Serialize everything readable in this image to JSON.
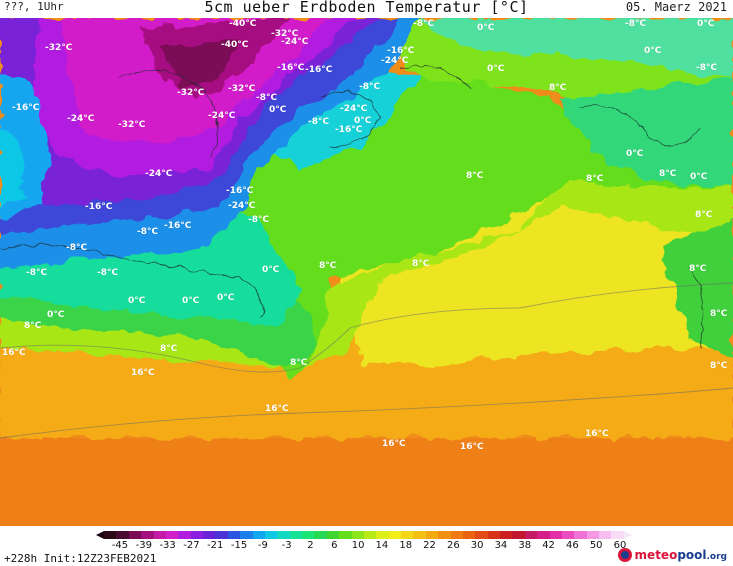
{
  "header": {
    "left": "???, 1Uhr",
    "title": "5cm ueber Erdboden Temperatur [°C]",
    "right": "05. Maerz 2021"
  },
  "map": {
    "labels": [
      "-40°C",
      "-40°C",
      "-32°C",
      "-24°C",
      "-8°C",
      "-32°C",
      "-16°C",
      "-24°C",
      "-16°C",
      "-16°C",
      "-8°C",
      "-24°C",
      "-16°C",
      "-32°C",
      "-32°C",
      "-8°C",
      "-24°C",
      "0°C",
      "0°C",
      "-8°C",
      "-24°C",
      "-32°C",
      "-16°C",
      "-16°C",
      "-24°C",
      "-8°C",
      "-24°C",
      "-16°C",
      "-8°C",
      "-16°C",
      "-8°C",
      "-8°C",
      "-8°C",
      "0°C",
      "0°C",
      "0°C",
      "0°C",
      "8°C",
      "8°C",
      "8°C",
      "8°C",
      "8°C",
      "8°C",
      "8°C",
      "8°C",
      "16°C",
      "16°C",
      "16°C",
      "16°C",
      "16°C",
      "16°C",
      "-8°C",
      "0°C",
      "0°C",
      "0°C",
      "0°C",
      "-8°C",
      "0°C",
      "8°C",
      "8°C",
      "8°C",
      "8°C",
      "0°C",
      "8°C",
      "0°C"
    ]
  },
  "legend": {
    "ticks": [
      "-45",
      "-39",
      "-33",
      "-27",
      "-21",
      "-15",
      "-9",
      "-3",
      "2",
      "6",
      "10",
      "14",
      "18",
      "22",
      "26",
      "30",
      "34",
      "38",
      "42",
      "46",
      "50",
      "60"
    ],
    "colors": [
      "#2a0818",
      "#4a0a30",
      "#7a0a55",
      "#a51080",
      "#c41aa8",
      "#d21fc9",
      "#b21ee0",
      "#8b1fe0",
      "#6a22d8",
      "#4a34d6",
      "#2a55e0",
      "#1c7ee8",
      "#13a6f0",
      "#11c7e6",
      "#14d9c2",
      "#16e29a",
      "#1be477",
      "#25d955",
      "#40d631",
      "#64dd1b",
      "#8ce51a",
      "#b7ea17",
      "#dcef19",
      "#f2ee1a",
      "#f5d616",
      "#f4c014",
      "#f3aa12",
      "#f28f12",
      "#ef7912",
      "#ea6312",
      "#e24b15",
      "#d8341a",
      "#cd2020",
      "#c11530",
      "#c51b63",
      "#d51f88",
      "#e22ea8",
      "#ec4cc2",
      "#f271d6",
      "#f598e4",
      "#f7bdef",
      "#f8dcf6"
    ],
    "init": "+228h Init:12Z23FEB2021",
    "logo_main": "meteo",
    "logo_accent": "pool",
    "logo_suffix": ".org"
  }
}
